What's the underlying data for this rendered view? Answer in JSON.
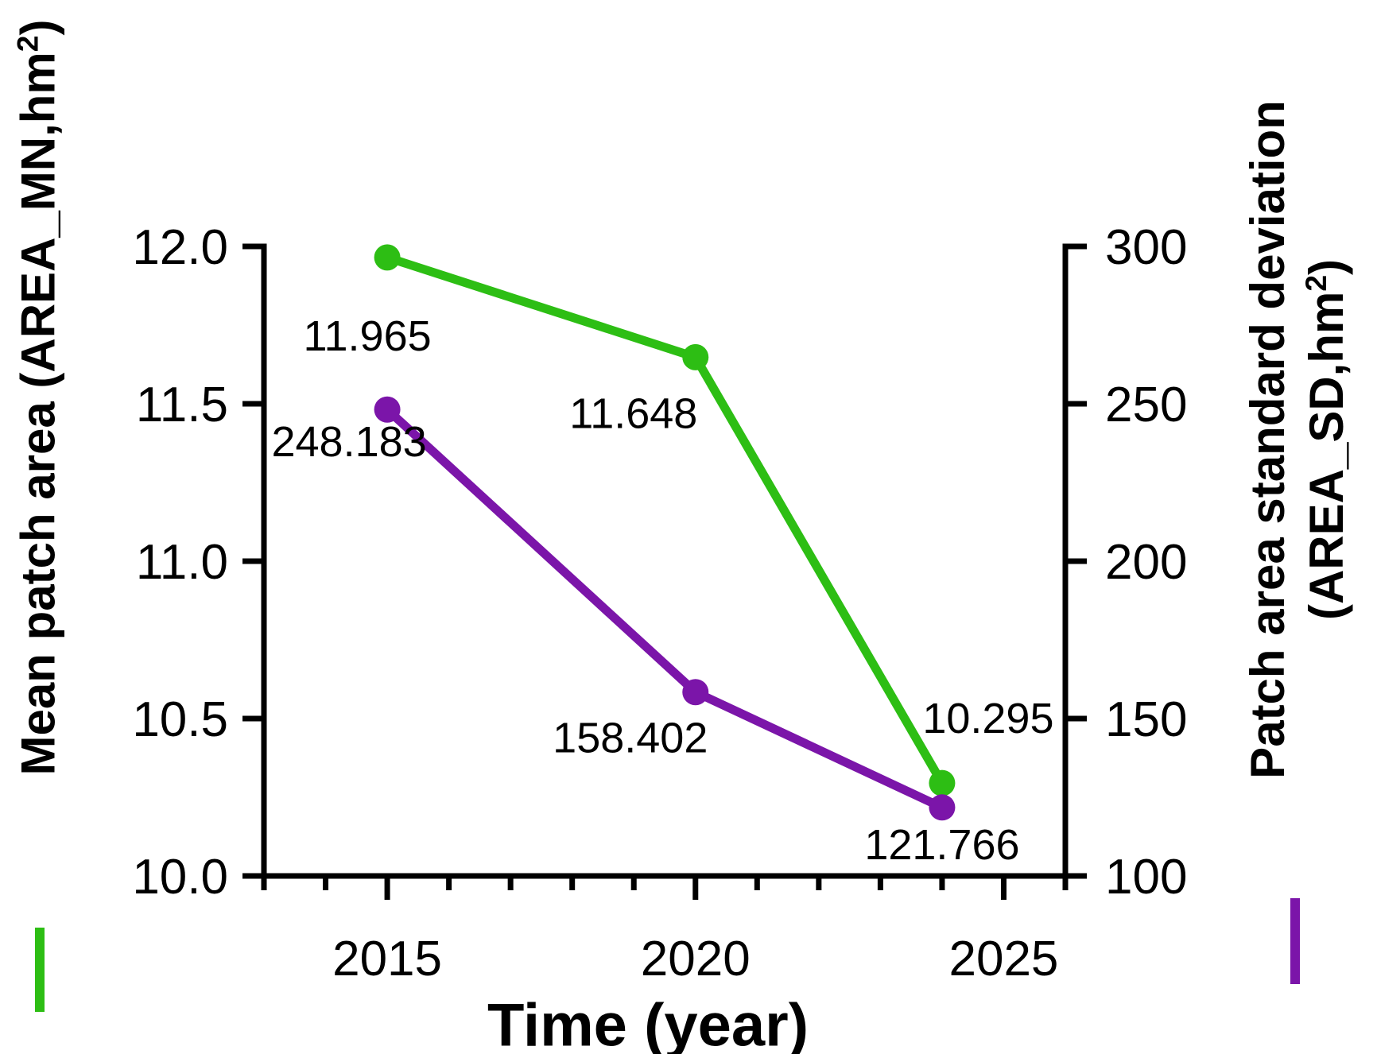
{
  "chart_data": {
    "type": "line",
    "title": "",
    "xlabel": "Time (year)",
    "x": [
      2015,
      2020,
      2024
    ],
    "x_axis": {
      "min": 2013,
      "max": 2026,
      "minor_step": 1,
      "major_ticks": [
        {
          "value": 2015,
          "label": "2015"
        },
        {
          "value": 2020,
          "label": "2020"
        },
        {
          "value": 2025,
          "label": "2025"
        }
      ]
    },
    "left_axis": {
      "label": "Mean patch area (AREA_MN,hm2)",
      "title_pre": "Mean patch area (AREA_MN,hm",
      "title_sup": "2",
      "title_post": ")",
      "min": 10.0,
      "max": 12.0,
      "ticks": [
        {
          "value": 10.0,
          "label": "10.0"
        },
        {
          "value": 10.5,
          "label": "10.5"
        },
        {
          "value": 11.0,
          "label": "11.0"
        },
        {
          "value": 11.5,
          "label": "11.5"
        },
        {
          "value": 12.0,
          "label": "12.0"
        }
      ]
    },
    "right_axis": {
      "label": "Patch area standard deviation (AREA_SD,hm2)",
      "title_line1": "Patch area standard deviation",
      "title_line2_pre": "(AREA_SD,hm",
      "title_line2_sup": "2",
      "title_line2_post": ")",
      "min": 100,
      "max": 300,
      "ticks": [
        {
          "value": 100,
          "label": "100"
        },
        {
          "value": 150,
          "label": "150"
        },
        {
          "value": 200,
          "label": "200"
        },
        {
          "value": 250,
          "label": "250"
        },
        {
          "value": 300,
          "label": "300"
        }
      ]
    },
    "series": [
      {
        "name": "Mean patch area (AREA_MN)",
        "axis": "left",
        "color": "#2dbe14",
        "x": [
          2015,
          2020,
          2024
        ],
        "values": [
          11.965,
          11.648,
          10.295
        ],
        "point_labels": [
          "11.965",
          "11.648",
          "10.295"
        ]
      },
      {
        "name": "Patch area standard deviation (AREA_SD)",
        "axis": "right",
        "color": "#7b15a9",
        "x": [
          2015,
          2020,
          2024
        ],
        "values": [
          248.183,
          158.402,
          121.766
        ],
        "point_labels": [
          "248.183",
          "158.402",
          "121.766"
        ]
      }
    ],
    "legend_marks": [
      {
        "series": "Mean patch area (AREA_MN)",
        "color": "#2dbe14"
      },
      {
        "series": "Patch area standard deviation (AREA_SD)",
        "color": "#7b15a9"
      }
    ],
    "grid": false,
    "legend_position": "bottom-corners",
    "background": "#ffffff",
    "axis_color": "#000000"
  }
}
